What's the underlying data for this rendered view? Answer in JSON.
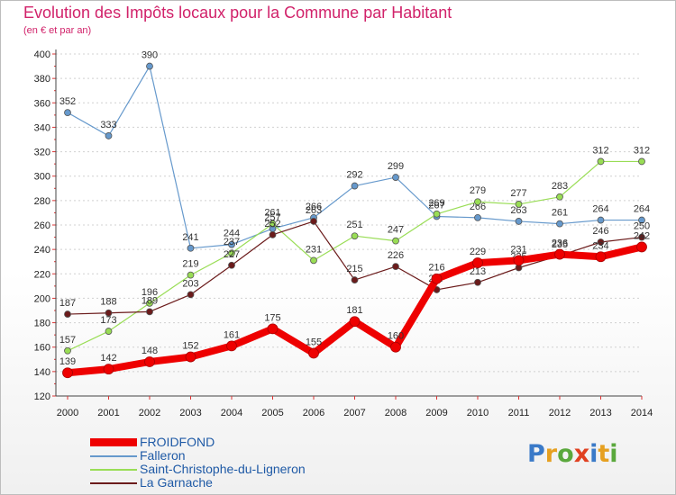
{
  "title": "Evolution des Impôts locaux pour la Commune par Habitant",
  "subtitle": "(en € et par an)",
  "logo": {
    "text": "Proxiti",
    "colors": [
      "#3a7ac8",
      "#e6a020",
      "#5aa83c",
      "#e04020"
    ]
  },
  "chart_data": {
    "type": "line",
    "title": "Evolution des Impôts locaux pour la Commune par Habitant",
    "subtitle": "(en € et par an)",
    "xlabel": "",
    "ylabel": "",
    "x": [
      "2000",
      "2001",
      "2002",
      "2003",
      "2004",
      "2005",
      "2006",
      "2007",
      "2008",
      "2009",
      "2010",
      "2011",
      "2012",
      "2013",
      "2014"
    ],
    "ylim": [
      120,
      400
    ],
    "yticks": [
      120,
      140,
      160,
      180,
      200,
      220,
      240,
      260,
      280,
      300,
      320,
      340,
      360,
      380,
      400
    ],
    "grid": "horizontal dashed",
    "legend": "bottom-left",
    "series": [
      {
        "name": "FROIDFOND",
        "color": "#ee0000",
        "emphasis": true,
        "values": [
          139,
          142,
          148,
          152,
          161,
          175,
          155,
          181,
          160,
          216,
          229,
          231,
          236,
          234,
          242
        ]
      },
      {
        "name": "Falleron",
        "color": "#6699cc",
        "values": [
          352,
          333,
          390,
          241,
          244,
          257,
          266,
          292,
          299,
          267,
          266,
          263,
          261,
          264,
          264
        ]
      },
      {
        "name": "Saint-Christophe-du-Ligneron",
        "color": "#99dd55",
        "values": [
          157,
          173,
          196,
          219,
          237,
          261,
          231,
          251,
          247,
          269,
          279,
          277,
          283,
          312,
          312
        ]
      },
      {
        "name": "La Garnache",
        "color": "#6b1b1b",
        "values": [
          187,
          188,
          189,
          203,
          227,
          252,
          263,
          215,
          226,
          207,
          213,
          225,
          235,
          246,
          250
        ]
      }
    ]
  }
}
